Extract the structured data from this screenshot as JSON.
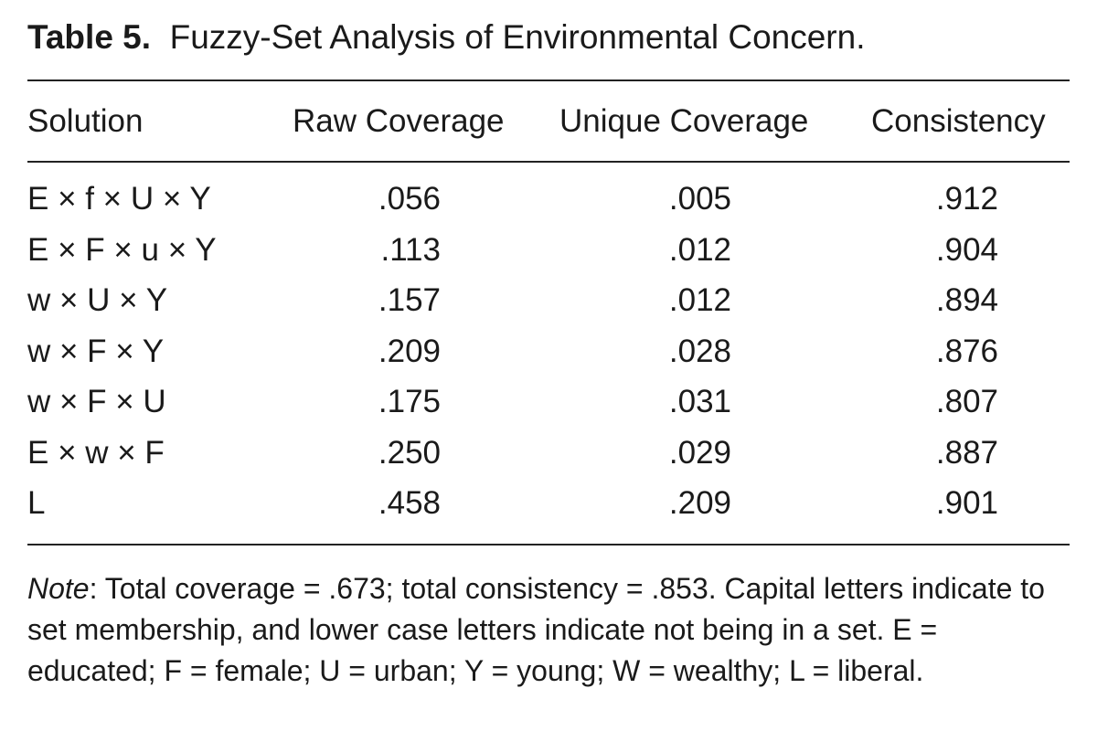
{
  "title": {
    "label": "Table 5.",
    "text": "Fuzzy-Set Analysis of Environmental Concern."
  },
  "table": {
    "headers": [
      "Solution",
      "Raw Coverage",
      "Unique Coverage",
      "Consistency"
    ],
    "rows": [
      [
        "E × f × U × Y",
        ".056",
        ".005",
        ".912"
      ],
      [
        "E × F × u × Y",
        ".113",
        ".012",
        ".904"
      ],
      [
        "w × U × Y",
        ".157",
        ".012",
        ".894"
      ],
      [
        "w × F × Y",
        ".209",
        ".028",
        ".876"
      ],
      [
        "w × F × U",
        ".175",
        ".031",
        ".807"
      ],
      [
        "E × w × F",
        ".250",
        ".029",
        ".887"
      ],
      [
        "L",
        ".458",
        ".209",
        ".901"
      ]
    ]
  },
  "note": {
    "label": "Note",
    "text": ": Total coverage = .673; total consistency = .853. Capital letters indicate to set membership, and lower case letters indicate not being in a set. E = educated; F = female; U = urban; Y = young; W = wealthy; L = liberal."
  }
}
